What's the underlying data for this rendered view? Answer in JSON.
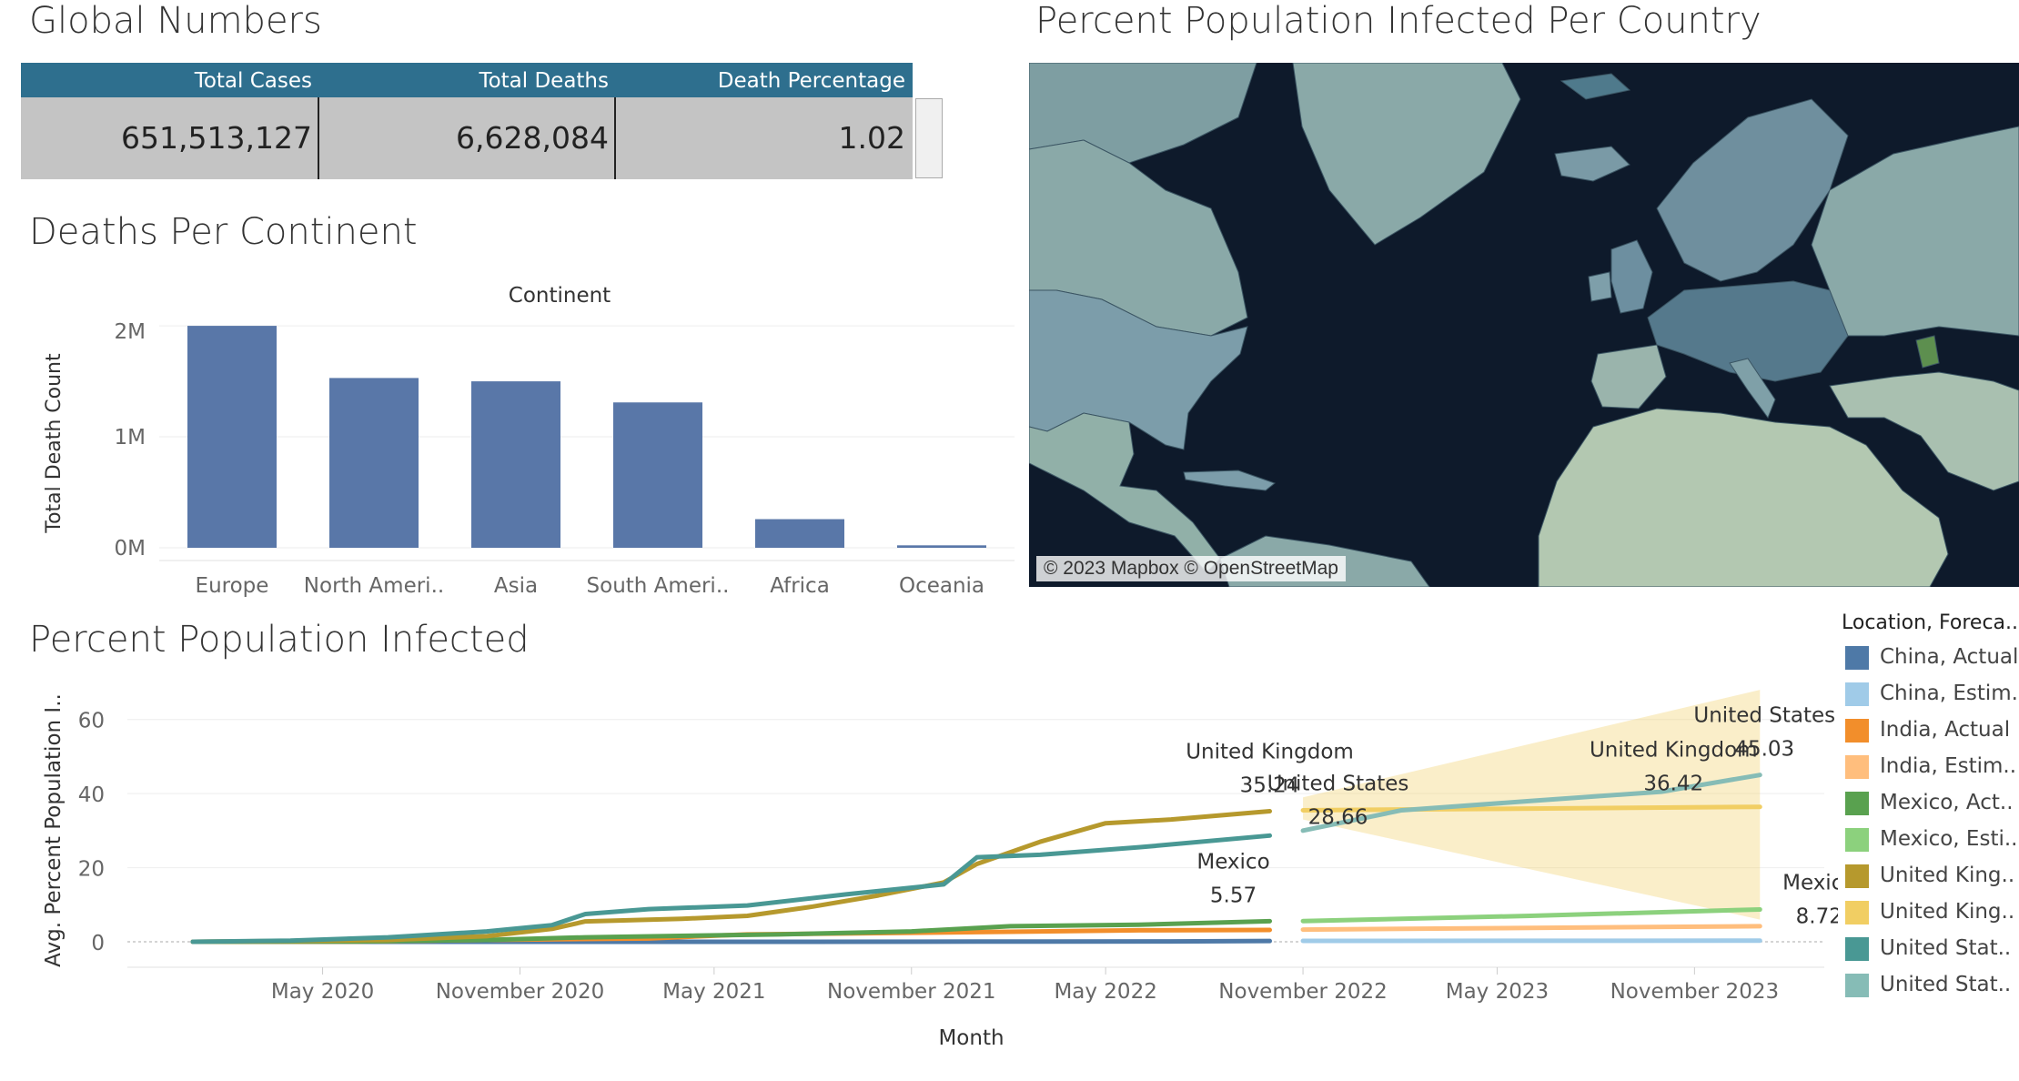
{
  "global_numbers": {
    "title": "Global Numbers",
    "headers": [
      "Total Cases",
      "Total Deaths",
      "Death Percentage"
    ],
    "values": [
      "651,513,127",
      "6,628,084",
      "1.02"
    ]
  },
  "map": {
    "title": "Percent Population Infected Per Country",
    "credit": "© 2023 Mapbox © OpenStreetMap",
    "colors": {
      "ocean": "#0e1a2b",
      "land": "#8aa9a8",
      "highlight": "#4f7a8c"
    }
  },
  "legend": {
    "title": "Location, Foreca..",
    "items": [
      {
        "label": "China, Actual",
        "color": "#4e79a7"
      },
      {
        "label": "China, Estim..",
        "color": "#a0cbe8"
      },
      {
        "label": "India, Actual",
        "color": "#f28e2b"
      },
      {
        "label": "India, Estim..",
        "color": "#ffbe7d"
      },
      {
        "label": "Mexico, Act..",
        "color": "#59a14f"
      },
      {
        "label": "Mexico, Esti..",
        "color": "#8cd17d"
      },
      {
        "label": "United King..",
        "color": "#b6992d"
      },
      {
        "label": "United King..",
        "color": "#f1ce63"
      },
      {
        "label": "United Stat..",
        "color": "#499894"
      },
      {
        "label": "United Stat..",
        "color": "#86bcb6"
      }
    ]
  },
  "chart_data": [
    {
      "type": "bar",
      "title": "Deaths Per Continent",
      "header": "Continent",
      "categories": [
        "Europe",
        "North Ameri..",
        "Asia",
        "South Ameri..",
        "Africa",
        "Oceania"
      ],
      "values": [
        2000000,
        1530000,
        1500000,
        1310000,
        258000,
        22000
      ],
      "ylabel": "Total Death Count",
      "yticks": [
        "0M",
        "1M",
        "2M"
      ],
      "ylim": [
        0,
        2050000
      ],
      "color": "#5977a8"
    },
    {
      "type": "line",
      "title": "Percent Population Infected",
      "xlabel": "Month",
      "ylabel": "Avg. Percent Population I..",
      "ylim": [
        0,
        70
      ],
      "yticks": [
        0,
        20,
        40,
        60
      ],
      "xlim": [
        "2019-11-01",
        "2024-03-01"
      ],
      "xticks": [
        {
          "date": "2020-05-01",
          "label": "May 2020"
        },
        {
          "date": "2020-11-01",
          "label": "November 2020"
        },
        {
          "date": "2021-05-01",
          "label": "May 2021"
        },
        {
          "date": "2021-11-01",
          "label": "November 2021"
        },
        {
          "date": "2022-05-01",
          "label": "May 2022"
        },
        {
          "date": "2022-11-01",
          "label": "November 2022"
        },
        {
          "date": "2023-05-01",
          "label": "May 2023"
        },
        {
          "date": "2023-11-01",
          "label": "November 2023"
        }
      ],
      "series": [
        {
          "name": "China, Actual",
          "color": "#4e79a7",
          "x": [
            "2020-01-01",
            "2020-07-01",
            "2021-01-01",
            "2021-07-01",
            "2022-01-01",
            "2022-07-01",
            "2022-10-01"
          ],
          "y": [
            0,
            0,
            0,
            0,
            0.05,
            0.1,
            0.2
          ]
        },
        {
          "name": "India, Actual",
          "color": "#f28e2b",
          "x": [
            "2020-01-01",
            "2020-06-01",
            "2020-10-01",
            "2021-03-01",
            "2021-06-01",
            "2022-01-01",
            "2022-06-01",
            "2022-10-01"
          ],
          "y": [
            0,
            0.05,
            0.5,
            0.9,
            2.0,
            2.6,
            3.1,
            3.2
          ]
        },
        {
          "name": "Mexico, Act..",
          "color": "#59a14f",
          "x": [
            "2020-01-01",
            "2020-06-01",
            "2020-10-01",
            "2021-01-01",
            "2021-07-01",
            "2021-11-01",
            "2022-02-01",
            "2022-06-01",
            "2022-10-01"
          ],
          "y": [
            0,
            0.1,
            0.5,
            1.2,
            2.0,
            2.8,
            4.2,
            4.6,
            5.57
          ]
        },
        {
          "name": "United King..",
          "color": "#b6992d",
          "x": [
            "2020-01-01",
            "2020-04-01",
            "2020-07-01",
            "2020-10-01",
            "2020-12-01",
            "2021-01-01",
            "2021-04-01",
            "2021-06-01",
            "2021-08-01",
            "2021-10-01",
            "2021-12-01",
            "2022-01-01",
            "2022-03-01",
            "2022-05-01",
            "2022-07-01",
            "2022-10-01"
          ],
          "y": [
            0,
            0.2,
            0.5,
            1.5,
            3.5,
            5.5,
            6.2,
            7.0,
            9.5,
            12.5,
            16.0,
            21.0,
            27.0,
            32.0,
            33.0,
            35.24
          ]
        },
        {
          "name": "United Stat..",
          "color": "#499894",
          "x": [
            "2020-01-01",
            "2020-04-01",
            "2020-07-01",
            "2020-10-01",
            "2020-12-01",
            "2021-01-01",
            "2021-03-01",
            "2021-06-01",
            "2021-09-01",
            "2021-12-01",
            "2022-01-01",
            "2022-03-01",
            "2022-06-01",
            "2022-10-01"
          ],
          "y": [
            0,
            0.3,
            1.2,
            2.8,
            4.5,
            7.5,
            8.8,
            9.8,
            12.8,
            15.5,
            22.8,
            23.5,
            25.5,
            28.66
          ]
        },
        {
          "name": "China, Estim..",
          "color": "#a0cbe8",
          "x": [
            "2022-11-01",
            "2024-01-01"
          ],
          "y": [
            0.25,
            0.3
          ]
        },
        {
          "name": "India, Estim..",
          "color": "#ffbe7d",
          "x": [
            "2022-11-01",
            "2024-01-01"
          ],
          "y": [
            3.3,
            4.2
          ]
        },
        {
          "name": "Mexico, Esti..",
          "color": "#8cd17d",
          "x": [
            "2022-11-01",
            "2023-06-01",
            "2024-01-01"
          ],
          "y": [
            5.6,
            7.0,
            8.72
          ]
        },
        {
          "name": "United King..",
          "color": "#f1ce63",
          "x": [
            "2022-11-01",
            "2024-01-01"
          ],
          "y": [
            35.5,
            36.42
          ]
        },
        {
          "name": "United Stat..",
          "color": "#86bcb6",
          "x": [
            "2022-11-01",
            "2023-02-01",
            "2023-06-01",
            "2023-10-01",
            "2024-01-01"
          ],
          "y": [
            30.0,
            35.5,
            38.0,
            40.5,
            45.03
          ]
        }
      ],
      "band": {
        "color": "#f1ce63",
        "x": [
          "2022-11-01",
          "2024-01-01"
        ],
        "upper": [
          39.0,
          68.0
        ],
        "lower": [
          33.0,
          6.0
        ]
      },
      "annotations": [
        {
          "name": "United Kingdom",
          "value": "35.24",
          "x": "2022-10-01",
          "y": 35.24
        },
        {
          "name": "Mexico",
          "value": "5.57",
          "x": "2022-10-01",
          "y": 5.57
        },
        {
          "name": "United States",
          "value": "28.66",
          "x": "2022-10-01",
          "y": 28.66
        },
        {
          "name": "United States",
          "value": "45.03",
          "x": "2024-01-01",
          "y": 45.03
        },
        {
          "name": "United Kingdom",
          "value": "36.42",
          "x": "2024-01-01",
          "y": 36.42
        },
        {
          "name": "Mexico",
          "value": "8.72",
          "x": "2024-01-01",
          "y": 8.72
        }
      ]
    }
  ]
}
